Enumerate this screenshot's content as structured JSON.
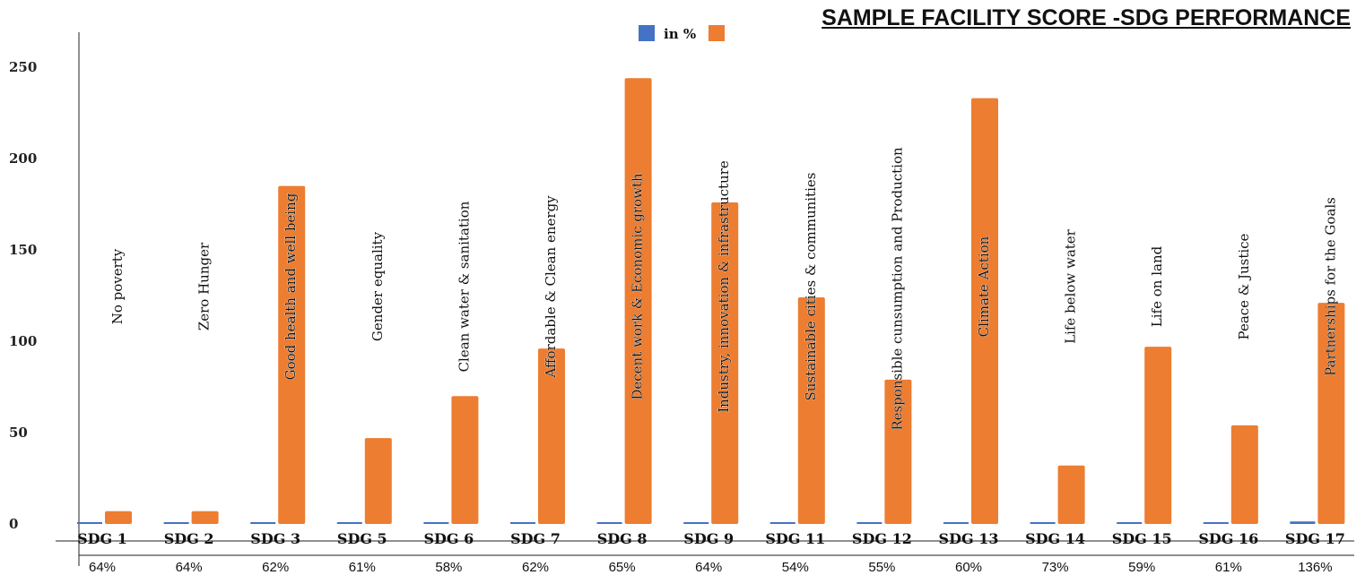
{
  "chart_data": {
    "type": "bar",
    "title": "SAMPLE FACILITY SCORE -SDG PERFORMANCE",
    "legend_position": "top",
    "ylim": [
      0,
      260
    ],
    "yticks": [
      0,
      50,
      100,
      150,
      200,
      250
    ],
    "categories": [
      "SDG 1",
      "SDG 2",
      "SDG 3",
      "SDG 5",
      "SDG 6",
      "SDG 7",
      "SDG 8",
      "SDG 9",
      "SDG 11",
      "SDG 12",
      "SDG 13",
      "SDG 14",
      "SDG 15",
      "SDG 16",
      "SDG 17"
    ],
    "goal_names": [
      "No poverty",
      "Zero Hunger",
      "Good health and well being",
      "Gender equality",
      "Clean water & sanitation",
      "Affordable & Clean energy",
      "Decent work & Economic growth",
      "Industry, innovation & infrastructure",
      "Sustainable cities & communities",
      "Responsible cunsumption and Production",
      "Climate Action",
      "Life below water",
      "Life on land",
      "Peace & Justice",
      "Partnerships for the Goals"
    ],
    "percent_labels": [
      "64%",
      "64%",
      "62%",
      "61%",
      "58%",
      "62%",
      "65%",
      "64%",
      "54%",
      "55%",
      "60%",
      "73%",
      "59%",
      "61%",
      "136%"
    ],
    "series": [
      {
        "name": "in %",
        "color": "#4472c4",
        "values": [
          0.64,
          0.64,
          0.62,
          0.61,
          0.58,
          0.62,
          0.65,
          0.64,
          0.54,
          0.55,
          0.6,
          0.73,
          0.59,
          0.61,
          1.36
        ]
      },
      {
        "name": "",
        "color": "#ed7d31",
        "values": [
          7,
          7,
          185,
          47,
          70,
          96,
          244,
          176,
          124,
          79,
          233,
          32,
          97,
          54,
          121
        ]
      }
    ]
  }
}
